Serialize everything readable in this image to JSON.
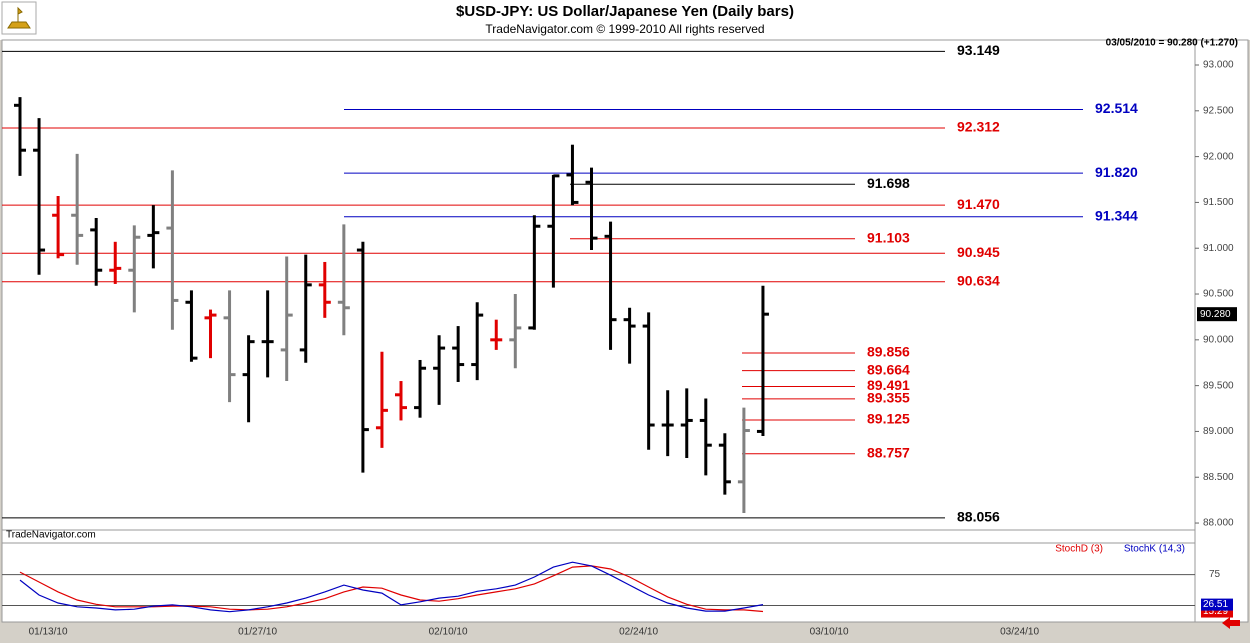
{
  "chart_data": {
    "type": "ohlc",
    "title": "$USD-JPY:  US Dollar/Japanese Yen  (Daily bars)",
    "subtitle": "TradeNavigator.com © 1999-2010 All rights reserved",
    "info": "03/05/2010 = 90.280 (+1.270)",
    "watermark": "TradeNavigator.com",
    "categories": [
      null,
      "01/13/10",
      null,
      null,
      null,
      null,
      null,
      null,
      null,
      null,
      null,
      null,
      "01/27/10",
      null,
      null,
      null,
      null,
      null,
      null,
      null,
      null,
      null,
      "02/10/10",
      null,
      null,
      null,
      null,
      null,
      null,
      null,
      null,
      null,
      "02/24/10",
      null,
      null,
      null,
      null,
      null,
      null,
      null,
      null,
      null,
      "03/10/10",
      null,
      null,
      null,
      null,
      null,
      null,
      null,
      null,
      null,
      "03/24/10",
      null
    ],
    "open": [
      92.56,
      92.07,
      91.36,
      91.36,
      91.2,
      90.76,
      90.76,
      91.14,
      91.22,
      90.41,
      90.24,
      90.24,
      89.62,
      89.98,
      89.89,
      89.89,
      90.6,
      90.41,
      90.98,
      89.04,
      89.4,
      89.26,
      89.69,
      89.91,
      89.73,
      90.0,
      90.0,
      90.13,
      91.24,
      91.8,
      91.72,
      91.13,
      90.22,
      90.15,
      89.07,
      89.07,
      89.12,
      88.85,
      88.45,
      89.0,
      null,
      null,
      null,
      null,
      null,
      null,
      null,
      null,
      null,
      null,
      null,
      null,
      null,
      null
    ],
    "high": [
      92.65,
      92.42,
      91.57,
      92.03,
      91.33,
      91.07,
      91.25,
      91.47,
      91.85,
      90.54,
      90.33,
      90.54,
      90.05,
      90.54,
      90.91,
      90.93,
      90.85,
      91.26,
      91.07,
      89.87,
      89.55,
      89.78,
      90.05,
      90.15,
      90.41,
      90.22,
      90.5,
      91.36,
      91.8,
      92.13,
      91.88,
      91.29,
      90.35,
      90.3,
      89.45,
      89.47,
      89.36,
      88.98,
      89.26,
      90.59,
      null,
      null,
      null,
      null,
      null,
      null,
      null,
      null,
      null,
      null,
      null,
      null,
      null,
      null
    ],
    "low": [
      91.79,
      90.71,
      90.89,
      90.82,
      90.59,
      90.61,
      90.3,
      90.78,
      90.11,
      89.76,
      89.8,
      89.32,
      89.1,
      89.59,
      89.55,
      89.75,
      90.24,
      90.05,
      88.55,
      88.82,
      89.12,
      89.15,
      89.29,
      89.54,
      89.56,
      89.89,
      89.69,
      90.11,
      90.57,
      91.47,
      90.98,
      89.89,
      89.74,
      88.8,
      88.73,
      88.71,
      88.52,
      88.31,
      88.11,
      88.95,
      null,
      null,
      null,
      null,
      null,
      null,
      null,
      null,
      null,
      null,
      null,
      null,
      null,
      null
    ],
    "close": [
      92.07,
      90.98,
      90.93,
      91.14,
      90.76,
      90.78,
      91.12,
      91.17,
      90.43,
      89.8,
      90.27,
      89.62,
      89.98,
      89.98,
      90.27,
      90.6,
      90.41,
      90.35,
      89.02,
      89.23,
      89.26,
      89.69,
      89.91,
      89.73,
      90.27,
      90.0,
      90.13,
      91.24,
      91.79,
      91.5,
      91.11,
      90.22,
      90.15,
      89.07,
      89.07,
      89.12,
      88.85,
      88.45,
      89.01,
      90.28,
      null,
      null,
      null,
      null,
      null,
      null,
      null,
      null,
      null,
      null,
      null,
      null,
      null,
      null
    ],
    "colors": [
      "#000000",
      "#000000",
      "#e00000",
      "#808080",
      "#000000",
      "#e00000",
      "#808080",
      "#000000",
      "#808080",
      "#000000",
      "#e00000",
      "#808080",
      "#000000",
      "#000000",
      "#808080",
      "#000000",
      "#e00000",
      "#808080",
      "#000000",
      "#e00000",
      "#e00000",
      "#000000",
      "#000000",
      "#000000",
      "#000000",
      "#e00000",
      "#808080",
      "#000000",
      "#000000",
      "#000000",
      "#000000",
      "#000000",
      "#000000",
      "#000000",
      "#000000",
      "#000000",
      "#000000",
      "#000000",
      "#808080",
      "#000000",
      null,
      null,
      null,
      null,
      null,
      null,
      null,
      null,
      null,
      null,
      null,
      null,
      null,
      null
    ],
    "last_label": "90.280",
    "ylim": [
      87.924,
      93.273
    ],
    "yticks": [
      {
        "value": 88,
        "label": "88.000"
      },
      {
        "value": 88.5,
        "label": "88.500"
      },
      {
        "value": 89,
        "label": "89.000"
      },
      {
        "value": 89.5,
        "label": "89.500"
      },
      {
        "value": 90,
        "label": "90.000"
      },
      {
        "value": 90.5,
        "label": "90.500"
      },
      {
        "value": 91,
        "label": "91.000"
      },
      {
        "value": 91.5,
        "label": "91.500"
      },
      {
        "value": 92,
        "label": "92.000"
      },
      {
        "value": 92.5,
        "label": "92.500"
      },
      {
        "value": 93,
        "label": "93.000"
      }
    ],
    "levels": [
      {
        "value": 93.149,
        "label": "93.149",
        "color": "#000000"
      },
      {
        "value": 92.514,
        "label": "92.514",
        "color": "#0000c0"
      },
      {
        "value": 92.312,
        "label": "92.312",
        "color": "#e00000"
      },
      {
        "value": 91.82,
        "label": "91.820",
        "color": "#0000c0"
      },
      {
        "value": 91.698,
        "label": "91.698",
        "color": "#000000"
      },
      {
        "value": 91.47,
        "label": "91.470",
        "color": "#e00000"
      },
      {
        "value": 91.344,
        "label": "91.344",
        "color": "#0000c0"
      },
      {
        "value": 91.103,
        "label": "91.103",
        "color": "#e00000"
      },
      {
        "value": 90.945,
        "label": "90.945",
        "color": "#e00000"
      },
      {
        "value": 90.634,
        "label": "90.634",
        "color": "#e00000"
      },
      {
        "value": 89.856,
        "label": "89.856",
        "color": "#e00000"
      },
      {
        "value": 89.664,
        "label": "89.664",
        "color": "#e00000"
      },
      {
        "value": 89.491,
        "label": "89.491",
        "color": "#e00000"
      },
      {
        "value": 89.355,
        "label": "89.355",
        "color": "#e00000"
      },
      {
        "value": 89.125,
        "label": "89.125",
        "color": "#e00000"
      },
      {
        "value": 88.757,
        "label": "88.757",
        "color": "#e00000"
      },
      {
        "value": 88.056,
        "label": "88.056",
        "color": "#000000"
      }
    ],
    "indicator": {
      "ylim": [
        0,
        126
      ],
      "yticks": [
        25,
        75
      ],
      "series": [
        {
          "name": "StochD (3)",
          "color": "#e00000",
          "values": [
            79,
            63,
            47,
            34,
            27,
            23,
            23,
            23,
            24,
            24,
            23,
            19,
            18,
            19,
            23,
            29,
            36,
            47,
            55,
            53,
            42,
            34,
            32,
            36,
            42,
            47,
            52,
            60,
            73,
            87,
            89,
            84,
            71,
            55,
            39,
            27,
            19,
            18,
            18,
            15.29,
            null,
            null,
            null,
            null,
            null,
            null,
            null,
            null,
            null,
            null,
            null,
            null,
            null,
            null
          ]
        },
        {
          "name": "StochK (14,3)",
          "color": "#0000c0",
          "values": [
            66,
            42,
            29,
            23,
            21,
            18,
            19,
            24,
            26,
            23,
            18,
            15,
            18,
            23,
            29,
            37,
            47,
            58,
            50,
            45,
            26,
            31,
            37,
            40,
            48,
            52,
            58,
            71,
            87,
            95,
            89,
            74,
            58,
            42,
            29,
            21,
            16,
            16,
            21,
            26.51,
            null,
            null,
            null,
            null,
            null,
            null,
            null,
            null,
            null,
            null,
            null,
            null,
            null,
            null
          ]
        }
      ]
    }
  }
}
